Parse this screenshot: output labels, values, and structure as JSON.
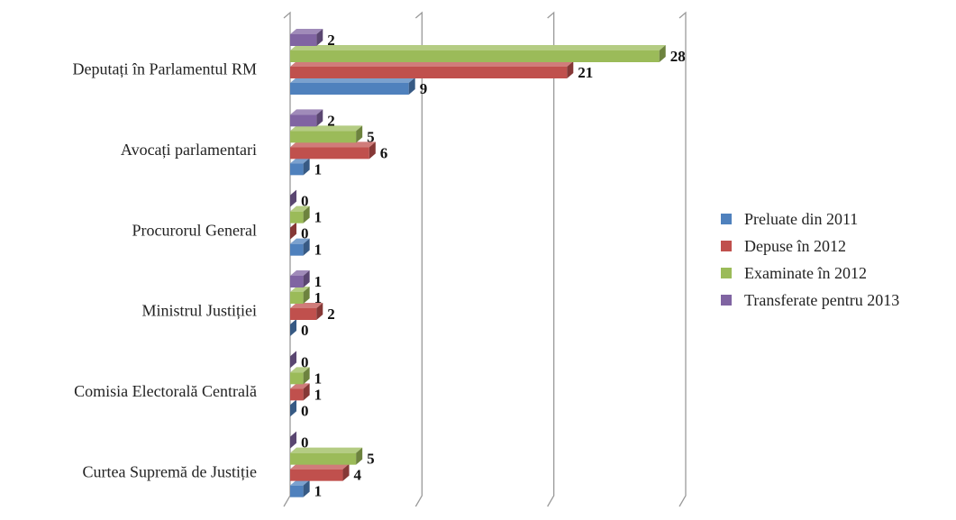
{
  "chart_data": {
    "type": "bar",
    "orientation": "horizontal",
    "style": "3d",
    "categories": [
      "Deputați în Parlamentul RM",
      "Avocați parlamentari",
      "Procurorul General",
      "Ministrul Justiției",
      "Comisia Electorală Centrală",
      "Curtea Supremă de Justiție"
    ],
    "series": [
      {
        "name": "Preluate din 2011",
        "color": "#4f81bd",
        "values": [
          9,
          1,
          1,
          0,
          0,
          1
        ]
      },
      {
        "name": "Depuse în 2012",
        "color": "#c0504d",
        "values": [
          21,
          6,
          0,
          2,
          1,
          4
        ]
      },
      {
        "name": "Examinate în 2012",
        "color": "#9bbb59",
        "values": [
          28,
          5,
          1,
          1,
          1,
          5
        ]
      },
      {
        "name": "Transferate pentru 2013",
        "color": "#8064a2",
        "values": [
          2,
          2,
          0,
          1,
          0,
          0
        ]
      }
    ],
    "xlim": [
      0,
      30
    ],
    "gridlines": [
      10,
      20,
      30
    ],
    "grid": true,
    "data_labels": true,
    "legend_position": "right",
    "title": "",
    "xlabel": "",
    "ylabel": ""
  }
}
